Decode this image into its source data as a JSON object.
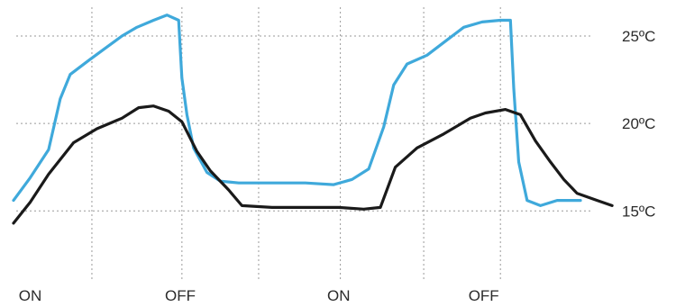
{
  "chart_data": {
    "type": "line",
    "title": "",
    "xlabel": "",
    "ylabel": "",
    "x_tick_labels": [
      {
        "x": 1.0,
        "label": "ON"
      },
      {
        "x": 10.0,
        "label": "OFF"
      },
      {
        "x": 19.5,
        "label": "ON"
      },
      {
        "x": 28.2,
        "label": "OFF"
      }
    ],
    "y_tick_labels": [
      {
        "y": 25,
        "label": "25ºC"
      },
      {
        "y": 20,
        "label": "20ºC"
      },
      {
        "y": 15,
        "label": "15ºC"
      }
    ],
    "xlim": [
      0,
      36
    ],
    "ylim": [
      11.0,
      26.8
    ],
    "grid": {
      "x": true,
      "y": true
    },
    "x_grid": [
      4.7,
      10.1,
      14.7,
      19.6,
      24.6,
      29.2
    ],
    "y_grid": [
      25,
      20,
      15
    ],
    "colors": {
      "blue": "#3fa9db",
      "black": "#1a1a1a",
      "grid": "#9a9a9a",
      "text": "#2b2b2b"
    },
    "series": [
      {
        "color": "#3fa9db",
        "points": [
          [
            0.0,
            15.6
          ],
          [
            1.0,
            16.9
          ],
          [
            2.1,
            18.5
          ],
          [
            2.8,
            21.4
          ],
          [
            3.4,
            22.8
          ],
          [
            4.5,
            23.6
          ],
          [
            5.5,
            24.3
          ],
          [
            6.5,
            25.0
          ],
          [
            7.4,
            25.5
          ],
          [
            8.4,
            25.9
          ],
          [
            9.2,
            26.2
          ],
          [
            9.9,
            25.9
          ],
          [
            10.1,
            22.6
          ],
          [
            10.4,
            20.5
          ],
          [
            10.8,
            18.6
          ],
          [
            11.6,
            17.2
          ],
          [
            12.4,
            16.7
          ],
          [
            13.5,
            16.6
          ],
          [
            15.5,
            16.6
          ],
          [
            17.5,
            16.6
          ],
          [
            19.2,
            16.5
          ],
          [
            20.3,
            16.8
          ],
          [
            21.3,
            17.4
          ],
          [
            22.2,
            19.8
          ],
          [
            22.8,
            22.2
          ],
          [
            23.6,
            23.4
          ],
          [
            24.8,
            23.9
          ],
          [
            25.9,
            24.7
          ],
          [
            27.0,
            25.5
          ],
          [
            28.1,
            25.8
          ],
          [
            29.2,
            25.9
          ],
          [
            29.8,
            25.9
          ],
          [
            30.0,
            22.0
          ],
          [
            30.3,
            17.8
          ],
          [
            30.8,
            15.6
          ],
          [
            31.6,
            15.3
          ],
          [
            32.6,
            15.6
          ],
          [
            34.0,
            15.6
          ]
        ]
      },
      {
        "color": "#1a1a1a",
        "points": [
          [
            0.0,
            14.3
          ],
          [
            1.0,
            15.5
          ],
          [
            2.1,
            17.1
          ],
          [
            3.6,
            18.9
          ],
          [
            5.0,
            19.7
          ],
          [
            6.5,
            20.3
          ],
          [
            7.5,
            20.9
          ],
          [
            8.4,
            21.0
          ],
          [
            9.3,
            20.7
          ],
          [
            10.1,
            20.1
          ],
          [
            11.0,
            18.4
          ],
          [
            11.8,
            17.3
          ],
          [
            12.9,
            16.2
          ],
          [
            13.7,
            15.3
          ],
          [
            15.5,
            15.2
          ],
          [
            17.5,
            15.2
          ],
          [
            19.5,
            15.2
          ],
          [
            21.0,
            15.1
          ],
          [
            22.0,
            15.2
          ],
          [
            22.9,
            17.5
          ],
          [
            24.2,
            18.6
          ],
          [
            25.8,
            19.4
          ],
          [
            27.4,
            20.3
          ],
          [
            28.3,
            20.6
          ],
          [
            29.5,
            20.8
          ],
          [
            30.4,
            20.5
          ],
          [
            31.3,
            19.0
          ],
          [
            32.2,
            17.8
          ],
          [
            33.0,
            16.8
          ],
          [
            33.8,
            16.0
          ],
          [
            35.0,
            15.6
          ],
          [
            35.9,
            15.3
          ]
        ]
      }
    ]
  }
}
